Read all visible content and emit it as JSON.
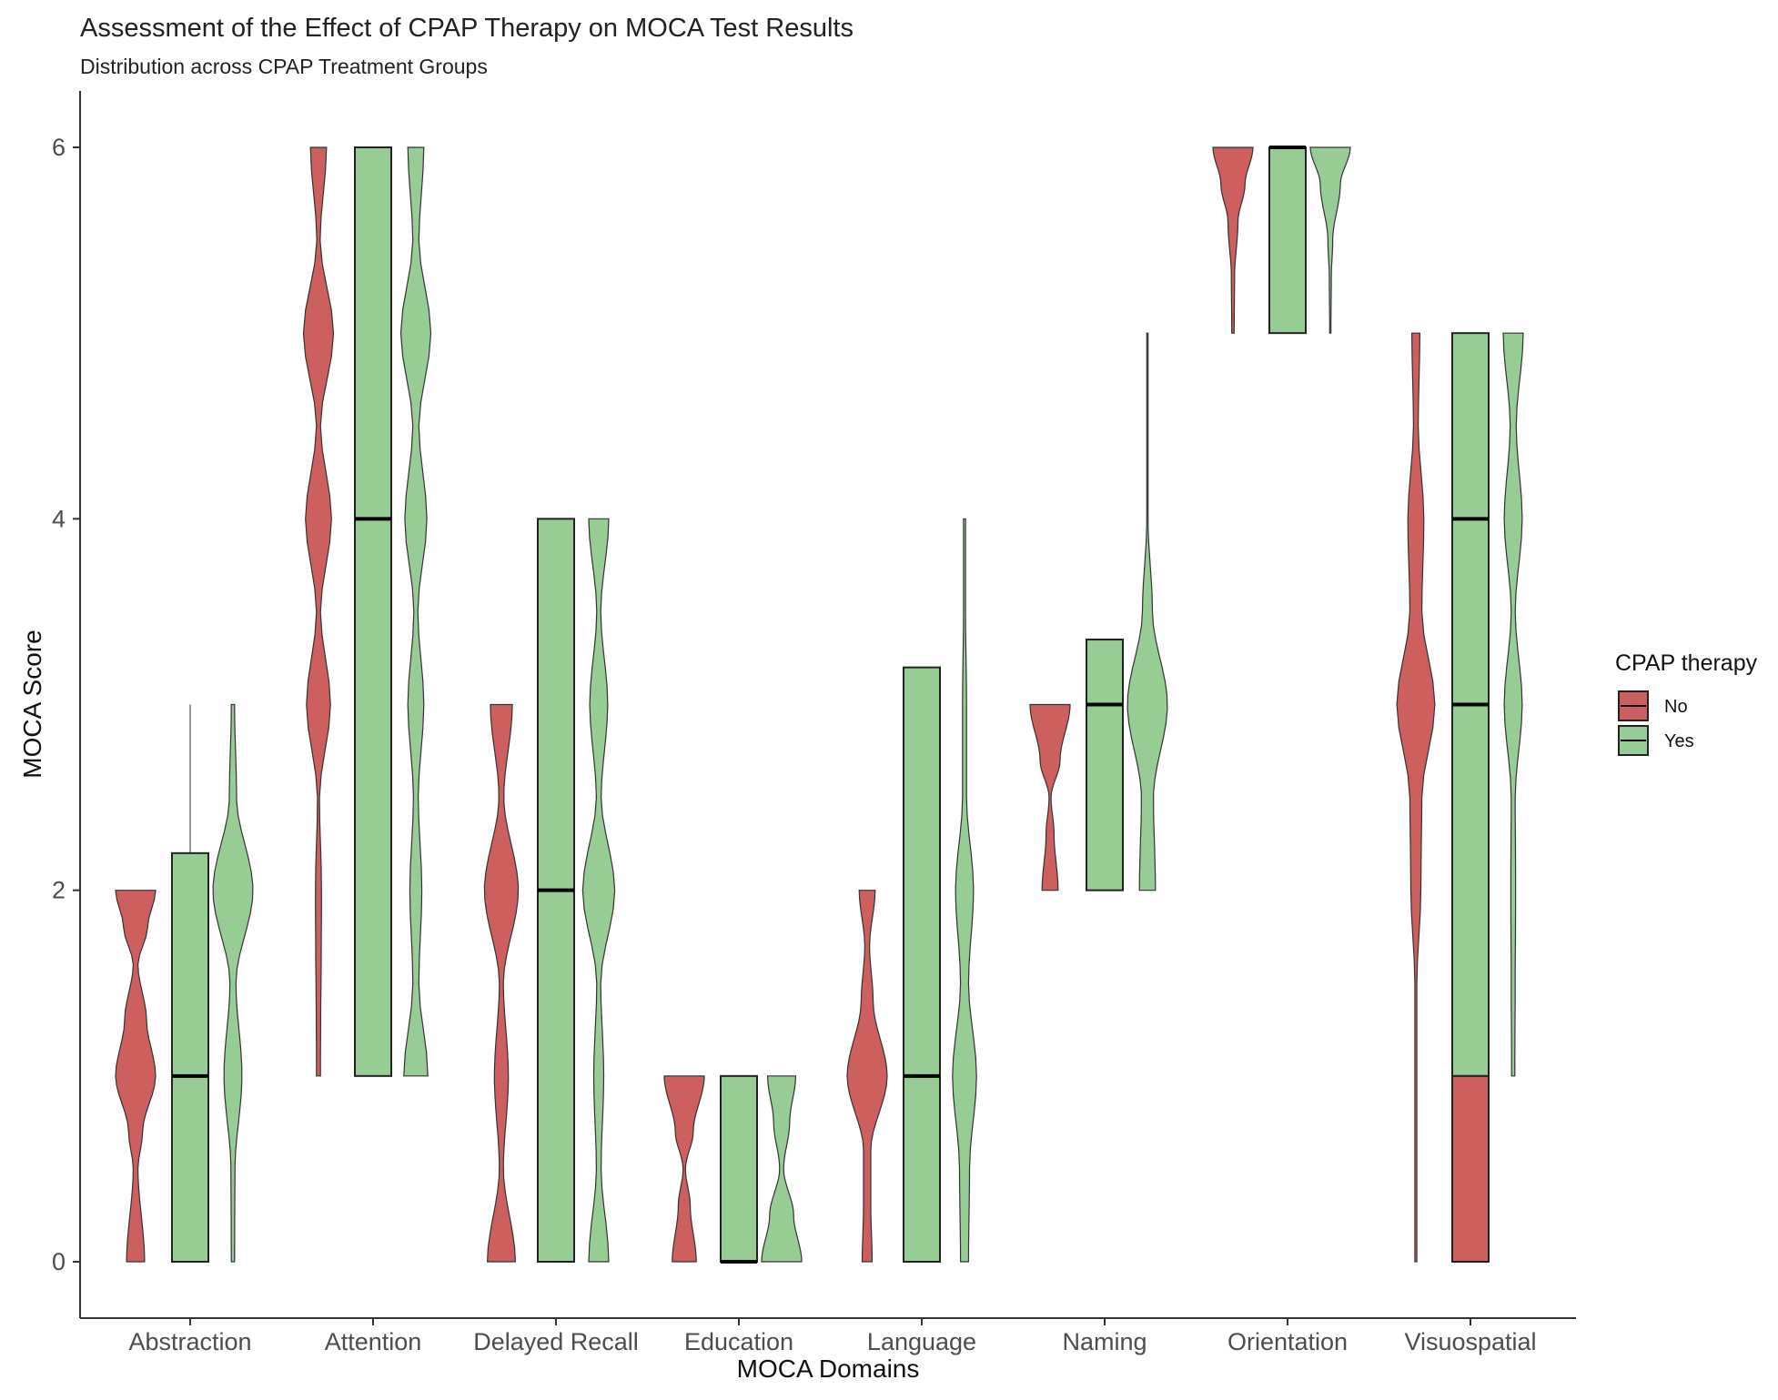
{
  "chart_data": {
    "type": "violin+box",
    "title": "Assessment of the Effect of CPAP Therapy on MOCA Test Results",
    "subtitle": "Distribution across CPAP Treatment Groups",
    "xlabel": "MOCA Domains",
    "ylabel": "MOCA Score",
    "ylim": [
      -0.3,
      6.3
    ],
    "yticks": [
      0,
      2,
      4,
      6
    ],
    "grid": false,
    "legend": {
      "title": "CPAP therapy",
      "position": "right",
      "entries": [
        {
          "label": "No",
          "color": "#CD5F5F"
        },
        {
          "label": "Yes",
          "color": "#97CC95"
        }
      ]
    },
    "categories": [
      "Abstraction",
      "Attention",
      "Delayed Recall",
      "Education",
      "Language",
      "Naming",
      "Orientation",
      "Visuospatial"
    ],
    "violins": {
      "No": [
        {
          "range": [
            0,
            2
          ],
          "density": [
            [
              0,
              0.45
            ],
            [
              0.5,
              0.12
            ],
            [
              0.7,
              0.35
            ],
            [
              1,
              1
            ],
            [
              1.3,
              0.55
            ],
            [
              1.6,
              0.12
            ],
            [
              1.8,
              0.6
            ],
            [
              2,
              1
            ]
          ]
        },
        {
          "range": [
            1,
            6
          ],
          "density": [
            [
              1,
              0.1
            ],
            [
              2,
              0.15
            ],
            [
              2.5,
              0.05
            ],
            [
              3,
              0.6
            ],
            [
              3.5,
              0.1
            ],
            [
              4,
              0.65
            ],
            [
              4.5,
              0.1
            ],
            [
              5,
              0.75
            ],
            [
              5.5,
              0.08
            ],
            [
              6,
              0.4
            ]
          ]
        },
        {
          "range": [
            0,
            3
          ],
          "density": [
            [
              0,
              0.7
            ],
            [
              0.5,
              0.1
            ],
            [
              1,
              0.35
            ],
            [
              1.5,
              0.1
            ],
            [
              2,
              0.85
            ],
            [
              2.5,
              0.12
            ],
            [
              3,
              0.55
            ]
          ]
        },
        {
          "range": [
            0,
            1
          ],
          "density": [
            [
              0,
              0.6
            ],
            [
              0.3,
              0.3
            ],
            [
              0.5,
              0.06
            ],
            [
              0.7,
              0.45
            ],
            [
              1,
              1
            ]
          ]
        },
        {
          "range": [
            0,
            2
          ],
          "density": [
            [
              0,
              0.25
            ],
            [
              0.3,
              0.18
            ],
            [
              0.6,
              0.18
            ],
            [
              1,
              1
            ],
            [
              1.4,
              0.3
            ],
            [
              1.7,
              0.12
            ],
            [
              2,
              0.4
            ]
          ]
        },
        {
          "range": [
            2,
            3
          ],
          "density": [
            [
              2,
              0.4
            ],
            [
              2.3,
              0.2
            ],
            [
              2.5,
              0.05
            ],
            [
              2.7,
              0.5
            ],
            [
              3,
              1
            ]
          ]
        },
        {
          "range": [
            5,
            6
          ],
          "density": [
            [
              5,
              0.06
            ],
            [
              5.3,
              0.08
            ],
            [
              5.6,
              0.25
            ],
            [
              5.8,
              0.6
            ],
            [
              6,
              1
            ]
          ]
        },
        {
          "range": [
            0,
            5
          ],
          "density": [
            [
              0,
              0.05
            ],
            [
              1,
              0.05
            ],
            [
              1.5,
              0.05
            ],
            [
              2,
              0.25
            ],
            [
              2.5,
              0.3
            ],
            [
              3,
              0.95
            ],
            [
              3.5,
              0.3
            ],
            [
              4,
              0.4
            ],
            [
              4.5,
              0.12
            ],
            [
              5,
              0.2
            ]
          ]
        }
      ],
      "Yes": [
        {
          "range": [
            0,
            3
          ],
          "density": [
            [
              0,
              0.08
            ],
            [
              0.5,
              0.1
            ],
            [
              1,
              0.45
            ],
            [
              1.5,
              0.15
            ],
            [
              2,
              1
            ],
            [
              2.5,
              0.18
            ],
            [
              3,
              0.08
            ]
          ]
        },
        {
          "range": [
            1,
            6
          ],
          "density": [
            [
              1,
              0.6
            ],
            [
              1.5,
              0.15
            ],
            [
              2,
              0.3
            ],
            [
              2.5,
              0.12
            ],
            [
              3,
              0.4
            ],
            [
              3.5,
              0.1
            ],
            [
              4,
              0.55
            ],
            [
              4.5,
              0.15
            ],
            [
              5,
              0.75
            ],
            [
              5.5,
              0.15
            ],
            [
              6,
              0.4
            ]
          ]
        },
        {
          "range": [
            0,
            4
          ],
          "density": [
            [
              0,
              0.5
            ],
            [
              0.5,
              0.12
            ],
            [
              1,
              0.25
            ],
            [
              1.5,
              0.1
            ],
            [
              2,
              0.8
            ],
            [
              2.5,
              0.12
            ],
            [
              3,
              0.45
            ],
            [
              3.5,
              0.1
            ],
            [
              4,
              0.5
            ]
          ]
        },
        {
          "range": [
            0,
            1
          ],
          "density": [
            [
              0,
              1
            ],
            [
              0.25,
              0.6
            ],
            [
              0.5,
              0.1
            ],
            [
              0.75,
              0.4
            ],
            [
              1,
              0.7
            ]
          ]
        },
        {
          "range": [
            0,
            4
          ],
          "density": [
            [
              0,
              0.2
            ],
            [
              0.5,
              0.25
            ],
            [
              1,
              0.6
            ],
            [
              1.5,
              0.2
            ],
            [
              2,
              0.45
            ],
            [
              2.5,
              0.1
            ],
            [
              3,
              0.1
            ],
            [
              3.5,
              0.05
            ],
            [
              4,
              0.05
            ]
          ]
        },
        {
          "range": [
            2,
            5
          ],
          "density": [
            [
              2,
              0.4
            ],
            [
              2.5,
              0.3
            ],
            [
              3,
              1
            ],
            [
              3.5,
              0.25
            ],
            [
              4,
              0.03
            ],
            [
              5,
              0.03
            ]
          ]
        },
        {
          "range": [
            5,
            6
          ],
          "density": [
            [
              5,
              0.03
            ],
            [
              5.3,
              0.05
            ],
            [
              5.5,
              0.12
            ],
            [
              5.8,
              0.5
            ],
            [
              6,
              1
            ]
          ]
        },
        {
          "range": [
            1,
            5
          ],
          "density": [
            [
              1,
              0.08
            ],
            [
              1.5,
              0.1
            ],
            [
              2,
              0.12
            ],
            [
              2.5,
              0.1
            ],
            [
              3,
              0.45
            ],
            [
              3.5,
              0.1
            ],
            [
              4,
              0.45
            ],
            [
              4.5,
              0.15
            ],
            [
              5,
              0.5
            ]
          ]
        }
      ]
    },
    "boxes": {
      "No": [
        null,
        null,
        null,
        null,
        null,
        null,
        null,
        {
          "q1": 0,
          "median": 1,
          "q3": 1
        }
      ],
      "Yes": [
        {
          "q1": 0,
          "median": 1,
          "q3": 2.2,
          "whisker_high": 3
        },
        {
          "q1": 1,
          "median": 4,
          "q3": 6
        },
        {
          "q1": 0,
          "median": 2,
          "q3": 4
        },
        {
          "q1": 0,
          "median": 0,
          "q3": 1
        },
        {
          "q1": 0,
          "median": 1,
          "q3": 3.2
        },
        {
          "q1": 2,
          "median": 3,
          "q3": 3.35
        },
        {
          "q1": 5,
          "median": 6,
          "q3": 6
        },
        {
          "q1": 1,
          "median": 3,
          "q3": 5,
          "median2": 4
        }
      ]
    }
  }
}
